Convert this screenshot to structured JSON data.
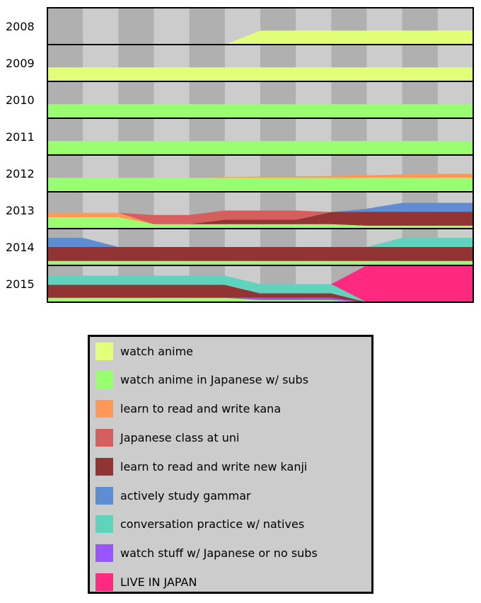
{
  "chart_data": {
    "type": "area",
    "title": "",
    "xlabel": "",
    "ylabel": "",
    "rows": [
      "2008",
      "2009",
      "2010",
      "2011",
      "2012",
      "2013",
      "2014",
      "2015"
    ],
    "columns_per_row": 12,
    "stack_max": 1,
    "grid": "alternating light/dark gray columns",
    "legend_position": "bottom",
    "series": [
      {
        "key": "anime",
        "name": "watch anime",
        "color": "#e1ff78"
      },
      {
        "key": "subs",
        "name": "watch anime in Japanese w/ subs",
        "color": "#99ff70"
      },
      {
        "key": "kana",
        "name": "learn to read and write kana",
        "color": "#ff9955"
      },
      {
        "key": "class",
        "name": "Japanese class at uni",
        "color": "#d55e5e"
      },
      {
        "key": "kanji",
        "name": "learn to read and write new kanji",
        "color": "#923434"
      },
      {
        "key": "grammar",
        "name": "actively study gammar",
        "color": "#5f8dd3"
      },
      {
        "key": "conv",
        "name": "conversation practice w/ natives",
        "color": "#5fd3bc"
      },
      {
        "key": "nosubs",
        "name": "watch stuff w/ Japanese or no subs",
        "color": "#9955ff"
      },
      {
        "key": "japan",
        "name": "LIVE IN JAPAN",
        "color": "#ff2a7f"
      }
    ],
    "values": {
      "2008": {
        "anime": [
          0,
          0,
          0,
          0,
          0,
          0,
          0.38,
          0.38,
          0.38,
          0.38,
          0.38,
          0.38,
          0.38
        ]
      },
      "2009": {
        "anime": [
          0.38,
          0.38,
          0.38,
          0.38,
          0.38,
          0.38,
          0.38,
          0.38,
          0.38,
          0.38,
          0.38,
          0.38,
          0.38
        ]
      },
      "2010": {
        "subs": [
          0.38,
          0.38,
          0.38,
          0.38,
          0.38,
          0.38,
          0.38,
          0.38,
          0.38,
          0.38,
          0.38,
          0.38,
          0.38
        ]
      },
      "2011": {
        "subs": [
          0.38,
          0.38,
          0.38,
          0.38,
          0.38,
          0.38,
          0.38,
          0.38,
          0.38,
          0.38,
          0.38,
          0.38,
          0.38
        ]
      },
      "2012": {
        "subs": [
          0.38,
          0.38,
          0.38,
          0.38,
          0.38,
          0.38,
          0.38,
          0.38,
          0.38,
          0.38,
          0.38,
          0.38,
          0.38
        ],
        "kana": [
          0,
          0,
          0,
          0,
          0,
          0.02,
          0.03,
          0.04,
          0.05,
          0.07,
          0.09,
          0.11,
          0.11
        ]
      },
      "2013": {
        "subs": [
          0.31,
          0.31,
          0.31,
          0.12,
          0.12,
          0.12,
          0.12,
          0.12,
          0.12,
          0.08,
          0.08,
          0.08,
          0.08
        ],
        "kana": [
          0.12,
          0.12,
          0.12,
          0,
          0,
          0,
          0,
          0,
          0,
          0,
          0,
          0,
          0
        ],
        "class": [
          0,
          0,
          0,
          0.25,
          0.25,
          0.25,
          0.25,
          0.25,
          0,
          0,
          0,
          0,
          0
        ],
        "kanji": [
          0,
          0,
          0,
          0,
          0,
          0.12,
          0.12,
          0.12,
          0.33,
          0.38,
          0.38,
          0.38,
          0.38
        ],
        "grammar": [
          0,
          0,
          0,
          0,
          0,
          0,
          0,
          0,
          0,
          0.08,
          0.24,
          0.24,
          0.24
        ]
      },
      "2014": {
        "subs": [
          0.12,
          0.12,
          0.12,
          0.12,
          0.12,
          0.12,
          0.12,
          0.12,
          0.12,
          0.12,
          0.12,
          0.12,
          0.12
        ],
        "kanji": [
          0.38,
          0.38,
          0.38,
          0.38,
          0.38,
          0.38,
          0.38,
          0.38,
          0.38,
          0.38,
          0.38,
          0.38,
          0.38
        ],
        "grammar": [
          0.25,
          0.25,
          0,
          0,
          0,
          0,
          0,
          0,
          0,
          0,
          0,
          0,
          0
        ],
        "conv": [
          0,
          0,
          0,
          0,
          0,
          0,
          0,
          0,
          0,
          0,
          0.25,
          0.25,
          0.25
        ]
      },
      "2015": {
        "subs": [
          0.12,
          0.12,
          0.12,
          0.12,
          0.12,
          0.12,
          0.06,
          0.06,
          0.06,
          0,
          0,
          0,
          0
        ],
        "nosubs": [
          0,
          0,
          0,
          0,
          0,
          0,
          0.06,
          0.06,
          0.06,
          0,
          0,
          0,
          0
        ],
        "kanji": [
          0.35,
          0.35,
          0.35,
          0.35,
          0.35,
          0.35,
          0.12,
          0.12,
          0.12,
          0,
          0,
          0,
          0
        ],
        "conv": [
          0.25,
          0.25,
          0.25,
          0.25,
          0.25,
          0.25,
          0.25,
          0.25,
          0.25,
          0,
          0,
          0,
          0
        ],
        "japan": [
          0,
          0,
          0,
          0,
          0,
          0,
          0,
          0,
          0,
          1,
          1,
          1,
          1
        ]
      }
    },
    "stack_order": [
      "subs",
      "anime",
      "nosubs",
      "kanji",
      "kana",
      "class",
      "grammar",
      "conv",
      "japan"
    ]
  }
}
